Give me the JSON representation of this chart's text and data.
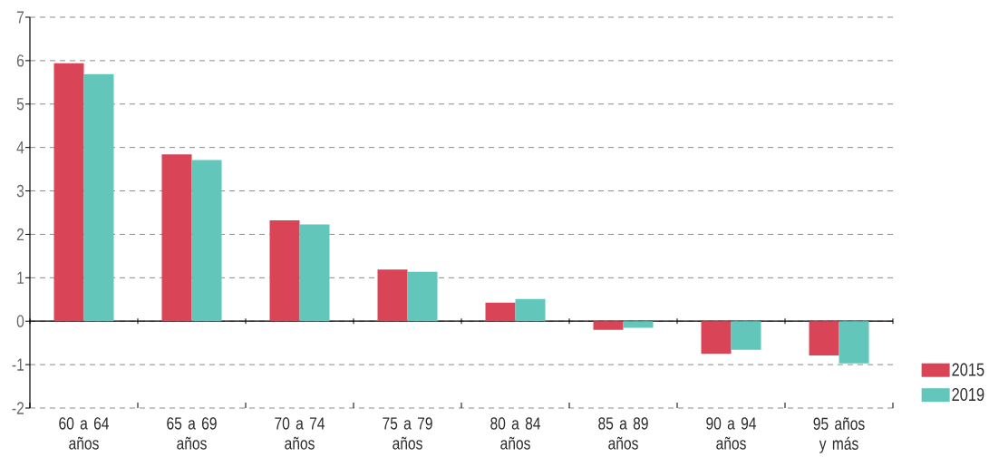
{
  "chart_data": {
    "type": "bar",
    "categories": [
      "60 a 64 años",
      "65 a 69 años",
      "70 a 74 años",
      "75 a 79 años",
      "80 a 84 años",
      "85 a 89 años",
      "90 a 94 años",
      "95 años y más"
    ],
    "series": [
      {
        "name": "2015",
        "color": "#d94556",
        "values": [
          5.94,
          3.84,
          2.32,
          1.19,
          0.43,
          -0.2,
          -0.75,
          -0.79
        ]
      },
      {
        "name": "2019",
        "color": "#62c6bb",
        "values": [
          5.69,
          3.71,
          2.23,
          1.14,
          0.51,
          -0.15,
          -0.66,
          -0.97
        ]
      }
    ],
    "ylim": [
      -2,
      7
    ],
    "yticks": [
      -2,
      -1,
      0,
      1,
      2,
      3,
      4,
      5,
      6,
      7
    ],
    "grid": "y",
    "legend": "bottom right"
  }
}
